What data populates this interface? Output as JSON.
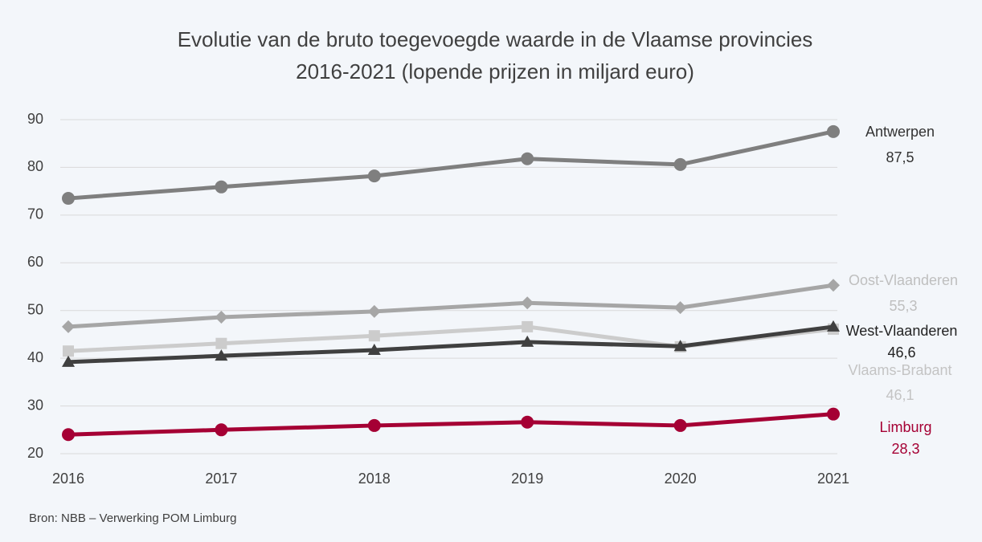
{
  "chart_data": {
    "type": "line",
    "title": [
      "Evolutie van de bruto toegevoegde waarde in de Vlaamse provincies",
      "2016-2021 (lopende prijzen in miljard euro)"
    ],
    "source": "Bron: NBB – Verwerking POM Limburg",
    "categories": [
      "2016",
      "2017",
      "2018",
      "2019",
      "2020",
      "2021"
    ],
    "ylim": [
      20,
      90
    ],
    "yticks": [
      20,
      30,
      40,
      50,
      60,
      70,
      80,
      90
    ],
    "grid": true,
    "series": [
      {
        "name": "Antwerpen",
        "color": "#7f7f7f",
        "label_color": "#333333",
        "marker": "circle",
        "values": [
          73.5,
          75.9,
          78.2,
          81.8,
          80.6,
          87.5
        ],
        "value_labels": [
          null,
          null,
          null,
          null,
          null,
          "87,5"
        ]
      },
      {
        "name": "Oost-Vlaanderen",
        "color": "#a6a6a6",
        "label_color": "#bfbfbf",
        "marker": "diamond",
        "values": [
          46.6,
          48.6,
          49.8,
          51.6,
          50.6,
          55.3
        ],
        "value_labels": [
          null,
          null,
          null,
          null,
          null,
          "55,3"
        ]
      },
      {
        "name": "Vlaams-Brabant",
        "color": "#cccccc",
        "label_color": "#c4c4c4",
        "marker": "square",
        "values": [
          41.5,
          43.1,
          44.7,
          46.6,
          42.4,
          46.1
        ],
        "value_labels": [
          null,
          null,
          null,
          null,
          null,
          "46,1"
        ]
      },
      {
        "name": "West-Vlaanderen",
        "color": "#404040",
        "label_color": "#222222",
        "marker": "triangle",
        "values": [
          39.2,
          40.5,
          41.7,
          43.4,
          42.5,
          46.6
        ],
        "value_labels": [
          null,
          null,
          null,
          null,
          null,
          "46,6"
        ]
      },
      {
        "name": "Limburg",
        "color": "#a50034",
        "label_color": "#a50034",
        "marker": "circle",
        "values": [
          24.0,
          25.0,
          25.9,
          26.6,
          25.9,
          28.3
        ],
        "value_labels": [
          null,
          null,
          null,
          null,
          null,
          "28,3"
        ]
      }
    ]
  }
}
